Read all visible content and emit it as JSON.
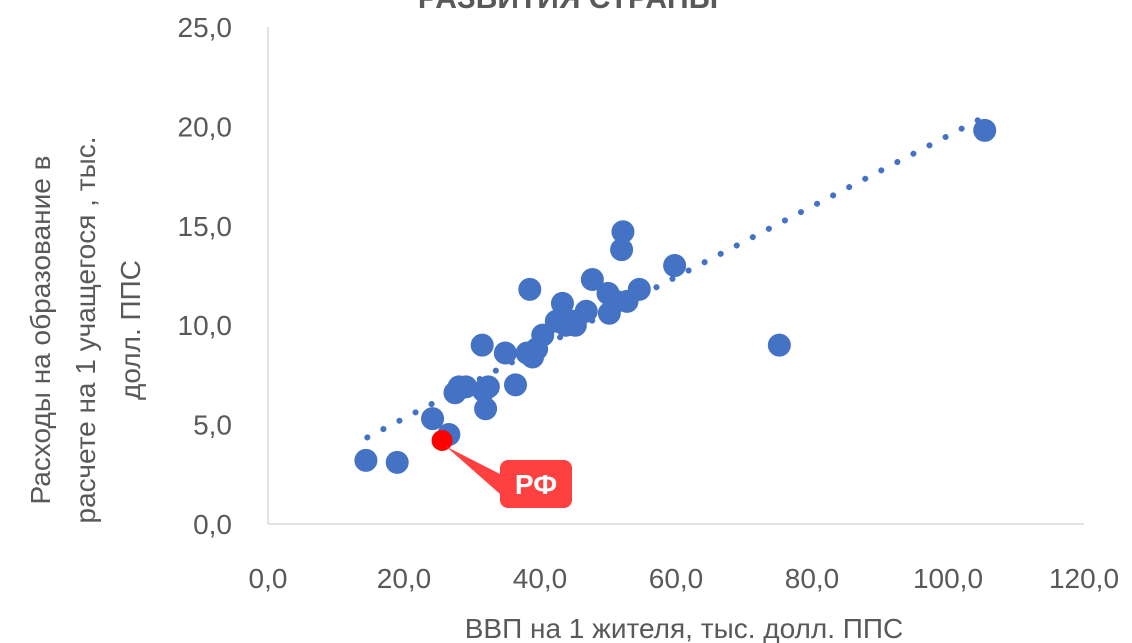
{
  "chart_data": {
    "type": "scatter",
    "title": "РАЗВИТИЯ СТРАНЫ",
    "xlabel": "ВВП на 1 жителя, тыс. долл. ППС",
    "ylabel_lines": [
      "Расходы на образование в",
      "расчете на 1 учащегося , тыс.",
      "долл. ППС"
    ],
    "xlim": [
      0,
      120
    ],
    "ylim": [
      0,
      25
    ],
    "x_ticks": [
      "0,0",
      "20,0",
      "40,0",
      "60,0",
      "80,0",
      "100,0",
      "120,0"
    ],
    "y_ticks": [
      "0,0",
      "5,0",
      "10,0",
      "15,0",
      "20,0",
      "25,0"
    ],
    "grid": false,
    "trendline": {
      "style": "dotted",
      "color": "#4472C4",
      "x_range": [
        14.6,
        105.4
      ],
      "slope": 0.1777,
      "intercept": 1.76
    },
    "series": [
      {
        "color": "#4472C4",
        "points": [
          {
            "x": 14.4,
            "y": 3.2
          },
          {
            "x": 19.0,
            "y": 3.1
          },
          {
            "x": 24.2,
            "y": 5.3
          },
          {
            "x": 26.6,
            "y": 4.5
          },
          {
            "x": 27.5,
            "y": 6.6
          },
          {
            "x": 28.1,
            "y": 6.9
          },
          {
            "x": 29.1,
            "y": 6.9
          },
          {
            "x": 31.5,
            "y": 9.0
          },
          {
            "x": 31.7,
            "y": 6.7
          },
          {
            "x": 32.0,
            "y": 5.8
          },
          {
            "x": 32.4,
            "y": 6.9
          },
          {
            "x": 34.9,
            "y": 8.6
          },
          {
            "x": 36.4,
            "y": 7.0
          },
          {
            "x": 38.1,
            "y": 8.6
          },
          {
            "x": 38.5,
            "y": 11.8
          },
          {
            "x": 38.9,
            "y": 8.4
          },
          {
            "x": 39.5,
            "y": 8.8
          },
          {
            "x": 40.4,
            "y": 9.5
          },
          {
            "x": 42.4,
            "y": 10.2
          },
          {
            "x": 43.3,
            "y": 11.1
          },
          {
            "x": 43.8,
            "y": 10.0
          },
          {
            "x": 44.9,
            "y": 10.2
          },
          {
            "x": 45.2,
            "y": 10.0
          },
          {
            "x": 46.8,
            "y": 10.7
          },
          {
            "x": 47.7,
            "y": 12.3
          },
          {
            "x": 50.0,
            "y": 11.6
          },
          {
            "x": 50.2,
            "y": 10.6
          },
          {
            "x": 51.2,
            "y": 11.2
          },
          {
            "x": 52.0,
            "y": 13.8
          },
          {
            "x": 52.2,
            "y": 14.7
          },
          {
            "x": 52.8,
            "y": 11.2
          },
          {
            "x": 54.6,
            "y": 11.8
          },
          {
            "x": 59.8,
            "y": 13.0
          },
          {
            "x": 75.2,
            "y": 9.0
          },
          {
            "x": 105.4,
            "y": 19.8
          }
        ]
      },
      {
        "color": "#FF0000",
        "points": [
          {
            "x": 25.6,
            "y": 4.2
          }
        ]
      }
    ],
    "annotations": [
      {
        "text": "РФ",
        "x": 25.6,
        "y": 4.2,
        "color": "#FF4040"
      }
    ]
  }
}
